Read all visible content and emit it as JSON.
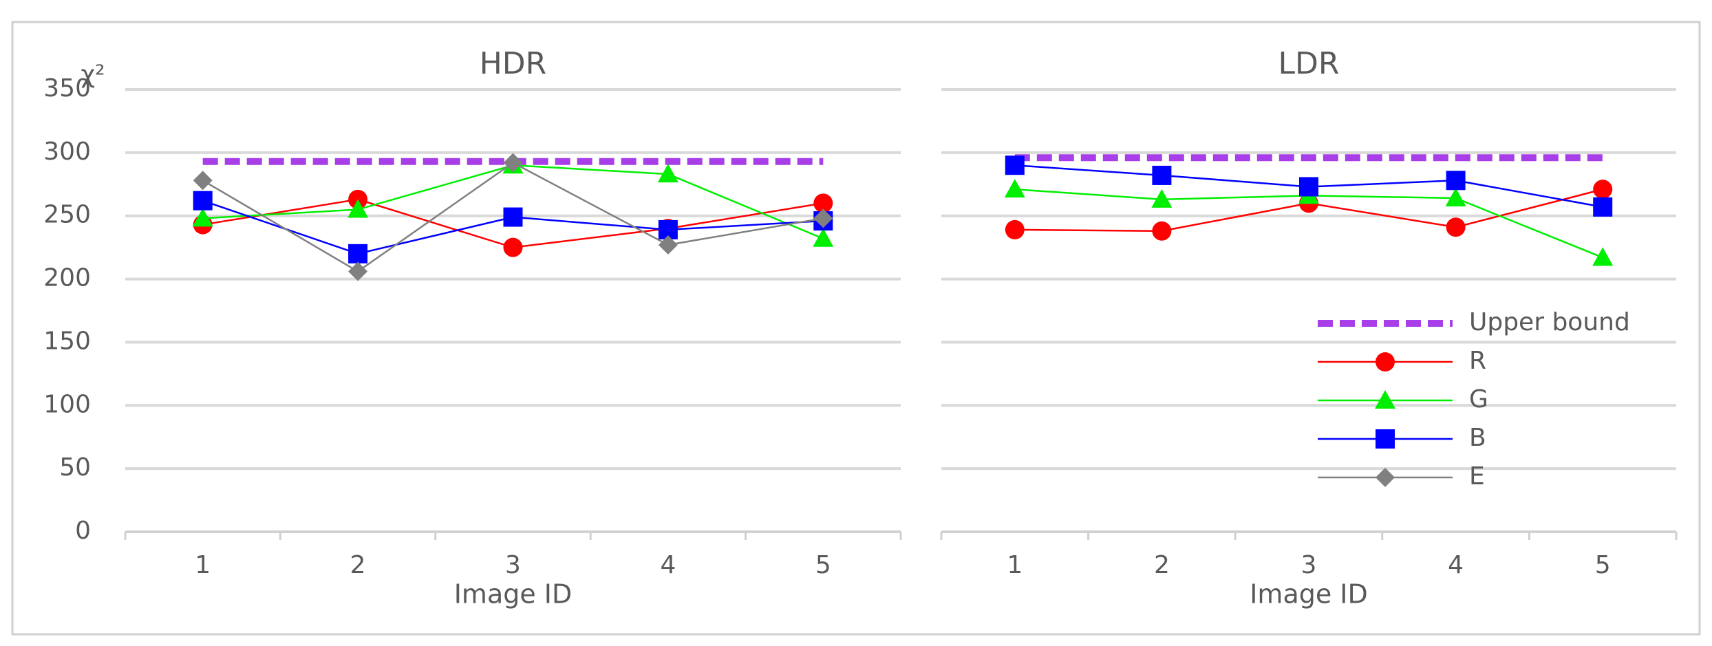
{
  "chart_data": [
    {
      "type": "line",
      "title": "HDR",
      "y_label": "χ²",
      "x_label": "Image ID",
      "categories": [
        "1",
        "2",
        "3",
        "4",
        "5"
      ],
      "ylim": [
        0,
        350
      ],
      "yticks": [
        0,
        50,
        100,
        150,
        200,
        250,
        300,
        350
      ],
      "ytick_labels": true,
      "grid": true,
      "series": [
        {
          "name": "Upper bound",
          "color": "#a83ee8",
          "dash": true,
          "marker": "none",
          "values": [
            293,
            293,
            293,
            293,
            293
          ]
        },
        {
          "name": "R",
          "color": "#ff0000",
          "marker": "circle",
          "values": [
            243,
            263,
            225,
            240,
            260
          ]
        },
        {
          "name": "G",
          "color": "#00ee00",
          "marker": "triangle",
          "values": [
            248,
            255,
            290,
            283,
            232
          ]
        },
        {
          "name": "B",
          "color": "#0000ff",
          "marker": "square",
          "values": [
            262,
            220,
            249,
            239,
            246
          ]
        },
        {
          "name": "E",
          "color": "#808080",
          "marker": "diamond",
          "values": [
            278,
            206,
            292,
            227,
            248
          ]
        }
      ]
    },
    {
      "type": "line",
      "title": "LDR",
      "x_label": "Image ID",
      "categories": [
        "1",
        "2",
        "3",
        "4",
        "5"
      ],
      "ylim": [
        0,
        350
      ],
      "yticks": [
        0,
        50,
        100,
        150,
        200,
        250,
        300,
        350
      ],
      "ytick_labels": false,
      "grid": true,
      "legend": "right",
      "series": [
        {
          "name": "Upper bound",
          "color": "#a83ee8",
          "dash": true,
          "marker": "none",
          "values": [
            296,
            296,
            296,
            296,
            296
          ]
        },
        {
          "name": "R",
          "color": "#ff0000",
          "marker": "circle",
          "values": [
            239,
            238,
            260,
            241,
            271
          ]
        },
        {
          "name": "G",
          "color": "#00ee00",
          "marker": "triangle",
          "values": [
            271,
            263,
            266,
            264,
            217
          ]
        },
        {
          "name": "B",
          "color": "#0000ff",
          "marker": "square",
          "values": [
            290,
            282,
            273,
            278,
            257
          ]
        },
        {
          "name": "E",
          "color": "#808080",
          "marker": "diamond",
          "values": [
            null,
            null,
            null,
            null,
            null
          ]
        }
      ]
    }
  ]
}
